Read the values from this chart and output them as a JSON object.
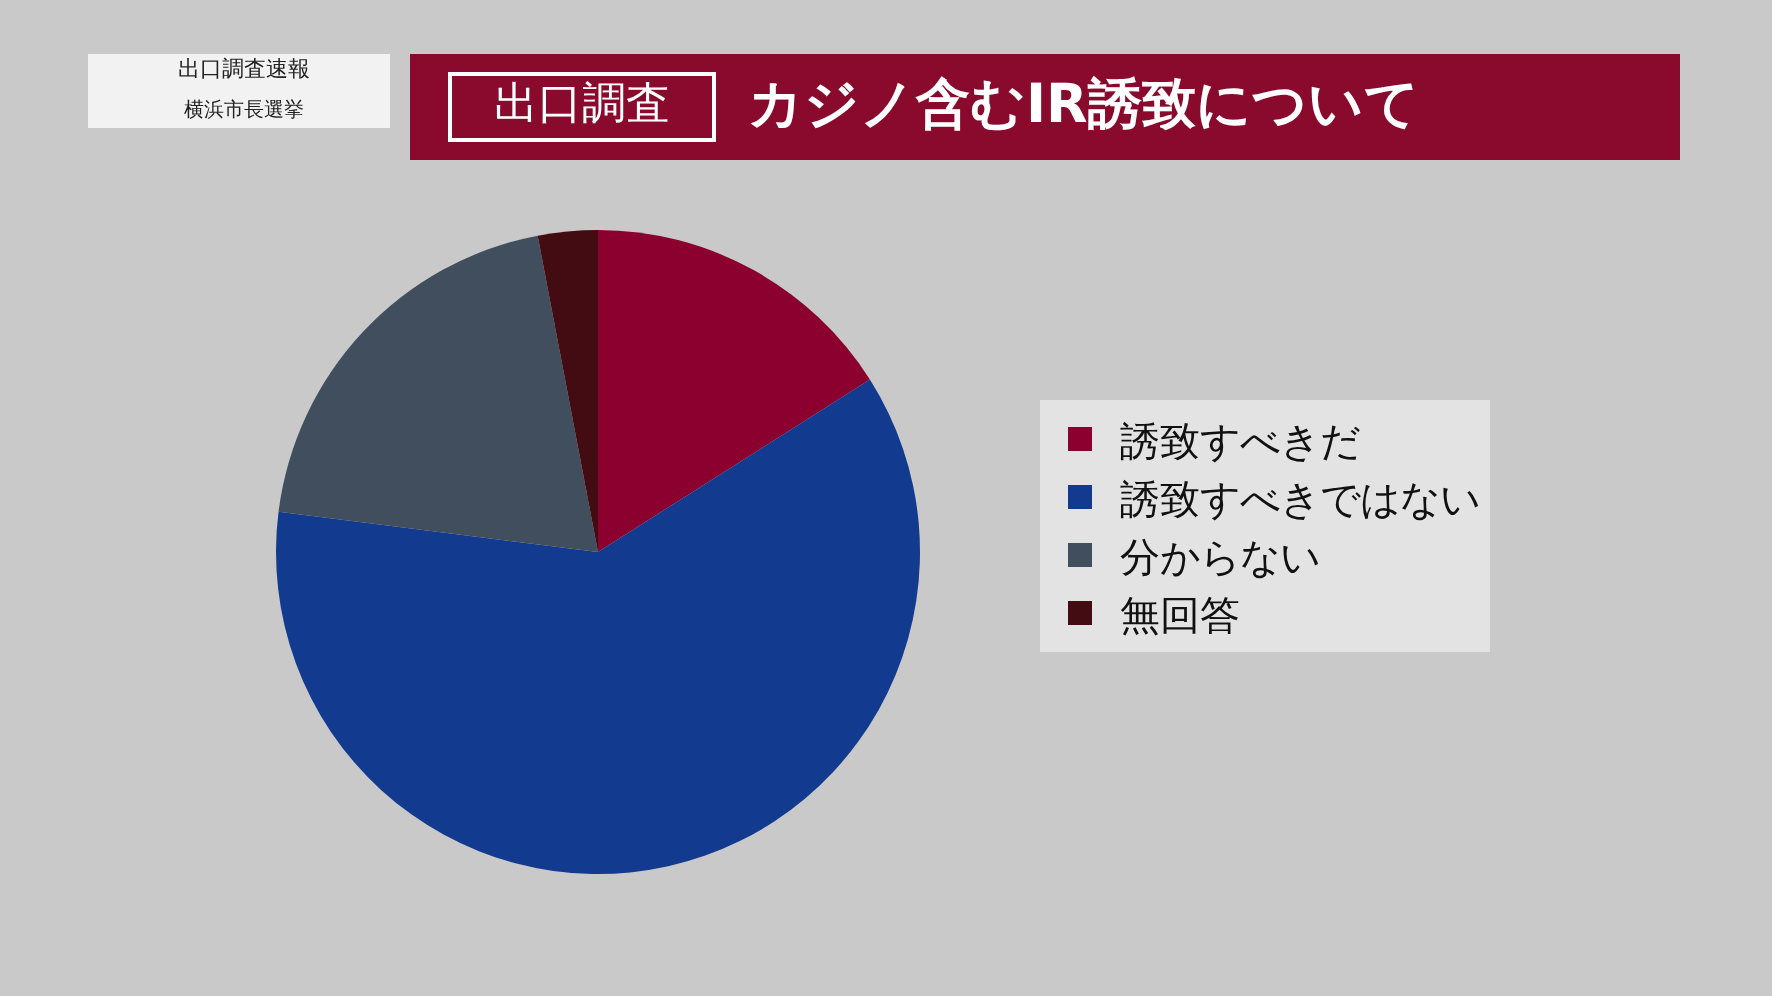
{
  "chart_data": {
    "type": "pie",
    "title": "カジノ含むIR誘致について",
    "subtitle": "出口調査",
    "annotations": [
      "出口調査速報",
      "横浜市長選挙"
    ],
    "categories": [
      "誘致すべきだ",
      "誘致すべきではない",
      "分からない",
      "無回答"
    ],
    "values": [
      16,
      61,
      20,
      3
    ],
    "colors": [
      "#8c0030",
      "#123b8f",
      "#414e5e",
      "#430c12"
    ],
    "legend": "right"
  }
}
